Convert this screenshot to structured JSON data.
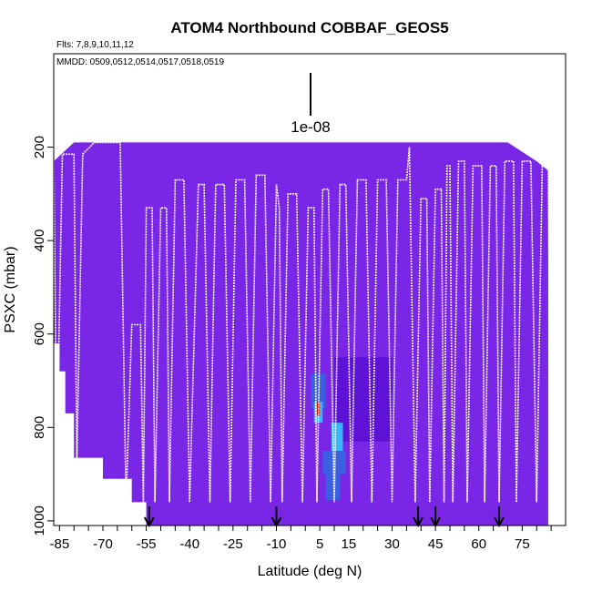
{
  "chart_data": {
    "type": "heatmap",
    "title": "ATOM4 Northbound COBBAF_GEOS5",
    "subtitle_flights": "Flts: 7,8,9,10,11,12",
    "subtitle_dates": "MMDD: 0509,0512,0514,0517,0518,0519",
    "xlabel": "Latitude (deg N)",
    "ylabel": "PSXC (mbar)",
    "xlim": [
      -87,
      90
    ],
    "ylim": [
      1010,
      0
    ],
    "y_reversed": true,
    "xticks": [
      -85,
      -70,
      -55,
      -40,
      -25,
      -10,
      5,
      15,
      30,
      45,
      60,
      75
    ],
    "yticks": [
      200,
      400,
      600,
      800,
      1000
    ],
    "scale_bar_label": "1e-08",
    "colors": {
      "background": "#7a26e6",
      "low": "#5e12d6",
      "medium": "#3a5fe0",
      "high": "#3ab6ff",
      "peak": "#d01000",
      "track": "#ffffff"
    },
    "upper_boundary": [
      [
        -87,
        230
      ],
      [
        -80,
        190
      ],
      [
        40,
        190
      ],
      [
        70,
        190
      ],
      [
        80,
        230
      ],
      [
        84,
        250
      ],
      [
        84,
        1010
      ],
      [
        -87,
        1010
      ]
    ],
    "lower_boundary_missing": [
      [
        -87,
        620
      ],
      [
        -85,
        620
      ],
      [
        -85,
        680
      ],
      [
        -83,
        680
      ],
      [
        -83,
        770
      ],
      [
        -80,
        770
      ],
      [
        -80,
        865
      ],
      [
        -70,
        865
      ],
      [
        -70,
        910
      ],
      [
        -60,
        910
      ],
      [
        -60,
        960
      ],
      [
        -55,
        960
      ],
      [
        -55,
        1010
      ],
      [
        -87,
        1010
      ]
    ],
    "enhanced_regions": [
      {
        "lat": [
          2,
          7
        ],
        "p": [
          685,
          760
        ],
        "level": "medium"
      },
      {
        "lat": [
          3,
          6
        ],
        "p": [
          745,
          790
        ],
        "level": "high"
      },
      {
        "lat": [
          4,
          5
        ],
        "p": [
          745,
          775
        ],
        "level": "peak"
      },
      {
        "lat": [
          9,
          13
        ],
        "p": [
          790,
          850
        ],
        "level": "high"
      },
      {
        "lat": [
          6,
          14
        ],
        "p": [
          850,
          900
        ],
        "level": "medium"
      },
      {
        "lat": [
          7,
          12
        ],
        "p": [
          900,
          955
        ],
        "level": "medium"
      },
      {
        "lat": [
          10,
          30
        ],
        "p": [
          650,
          830
        ],
        "level": "low"
      }
    ],
    "flight_track": [
      [
        -87,
        210
      ],
      [
        -86,
        870
      ],
      [
        -84,
        215
      ],
      [
        -80,
        215
      ],
      [
        -79,
        870
      ],
      [
        -77,
        215
      ],
      [
        -73,
        190
      ],
      [
        -64,
        190
      ],
      [
        -62,
        960
      ],
      [
        -60,
        580
      ],
      [
        -57,
        580
      ],
      [
        -56,
        960
      ],
      [
        -55,
        330
      ],
      [
        -53,
        330
      ],
      [
        -52,
        960
      ],
      [
        -50,
        330
      ],
      [
        -48,
        330
      ],
      [
        -47,
        960
      ],
      [
        -45,
        270
      ],
      [
        -42,
        270
      ],
      [
        -40,
        960
      ],
      [
        -37,
        280
      ],
      [
        -35,
        280
      ],
      [
        -33,
        960
      ],
      [
        -31,
        280
      ],
      [
        -28,
        280
      ],
      [
        -26,
        960
      ],
      [
        -24,
        270
      ],
      [
        -21,
        270
      ],
      [
        -19,
        960
      ],
      [
        -17,
        260
      ],
      [
        -14,
        260
      ],
      [
        -12,
        960
      ],
      [
        -10,
        280
      ],
      [
        -9,
        330
      ],
      [
        -8,
        960
      ],
      [
        -6,
        300
      ],
      [
        -3,
        300
      ],
      [
        -1,
        960
      ],
      [
        1,
        330
      ],
      [
        3,
        330
      ],
      [
        4,
        960
      ],
      [
        6,
        290
      ],
      [
        8,
        290
      ],
      [
        10,
        960
      ],
      [
        12,
        280
      ],
      [
        14,
        280
      ],
      [
        16,
        960
      ],
      [
        18,
        270
      ],
      [
        21,
        270
      ],
      [
        23,
        960
      ],
      [
        25,
        270
      ],
      [
        28,
        270
      ],
      [
        30,
        960
      ],
      [
        32,
        270
      ],
      [
        35,
        270
      ],
      [
        36,
        200
      ],
      [
        38,
        960
      ],
      [
        40,
        310
      ],
      [
        42,
        310
      ],
      [
        43,
        960
      ],
      [
        45,
        290
      ],
      [
        47,
        290
      ],
      [
        48,
        960
      ],
      [
        49,
        240
      ],
      [
        50,
        240
      ],
      [
        51,
        960
      ],
      [
        53,
        230
      ],
      [
        55,
        230
      ],
      [
        56,
        960
      ],
      [
        58,
        240
      ],
      [
        61,
        240
      ],
      [
        62,
        960
      ],
      [
        64,
        240
      ],
      [
        66,
        240
      ],
      [
        67,
        960
      ],
      [
        69,
        230
      ],
      [
        72,
        230
      ],
      [
        73,
        960
      ],
      [
        75,
        230
      ],
      [
        78,
        230
      ],
      [
        80,
        960
      ],
      [
        82,
        215
      ],
      [
        84,
        215
      ],
      [
        85,
        1000
      ]
    ],
    "dive_markers": [
      -54,
      -10,
      39,
      45,
      67
    ]
  }
}
